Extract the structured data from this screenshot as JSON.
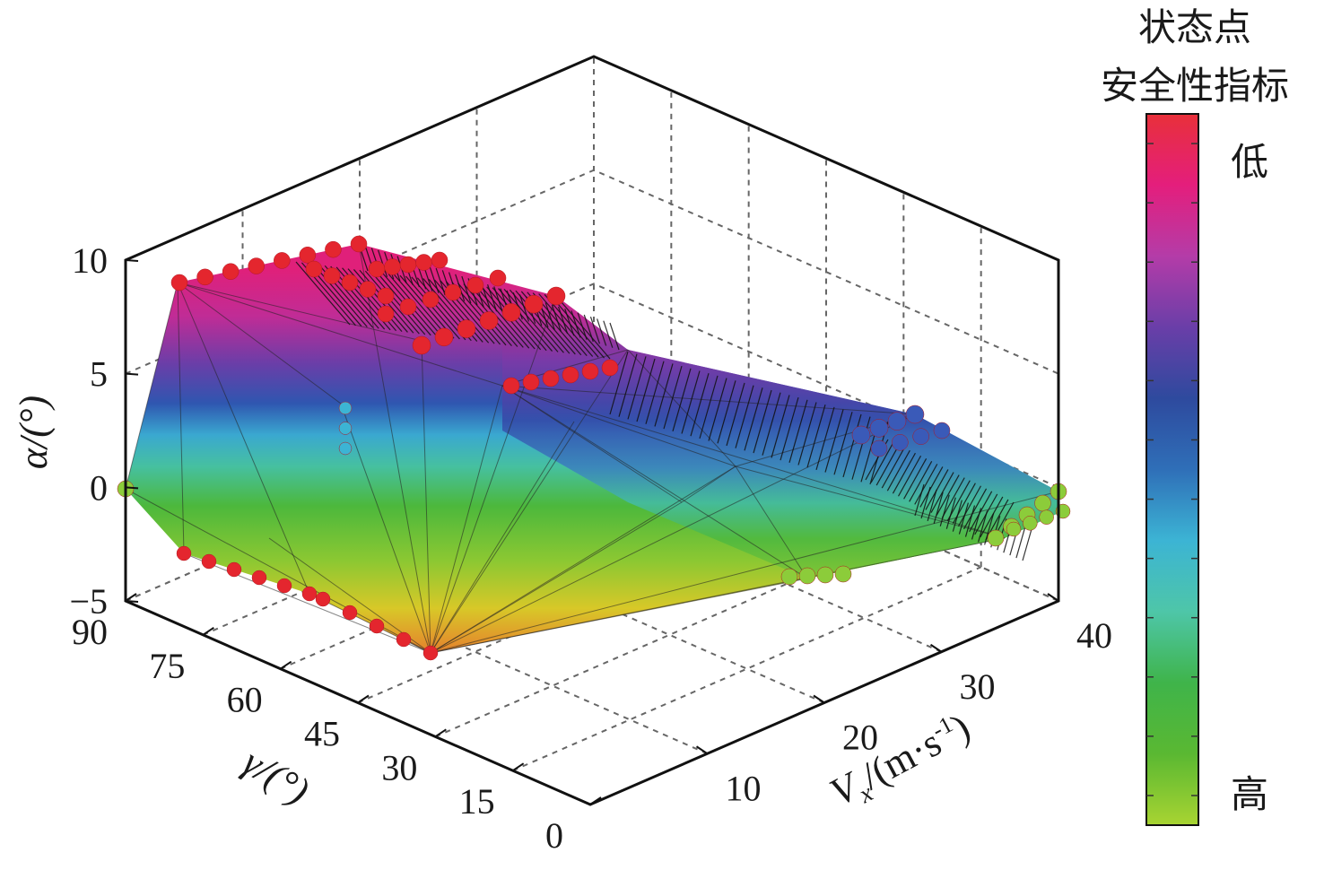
{
  "chart_data": {
    "type": "surface3d",
    "x_axis": {
      "label_main": "V",
      "label_sub": "x",
      "label_unit": "/(m·s",
      "label_exp": "-1",
      "label_close": ")",
      "ticks": [
        "10",
        "20",
        "30",
        "40"
      ],
      "range": [
        0,
        40
      ]
    },
    "y_axis": {
      "label": "γ/(°)",
      "ticks": [
        "0",
        "15",
        "30",
        "45",
        "60",
        "75",
        "90"
      ],
      "range": [
        0,
        90
      ]
    },
    "z_axis": {
      "label": "α/(°)",
      "ticks": [
        "−5",
        "0",
        "5",
        "10"
      ],
      "range": [
        -5,
        10
      ]
    },
    "colorbar": {
      "title_line1": "状态点",
      "title_line2": "安全性指标",
      "top_label": "低",
      "bottom_label": "高",
      "colors": [
        "#e8303a",
        "#e41e7c",
        "#b43ca8",
        "#6a3ea8",
        "#2e4a9e",
        "#2f6fb8",
        "#3cb4d4",
        "#4ec6a8",
        "#3fb44a",
        "#5ab832",
        "#a8d432"
      ]
    },
    "grid": true,
    "surface_colors": {
      "top": "#e0207a",
      "upper": "#8a3aa8",
      "mid": "#3a4aa8",
      "cyan": "#3cb4d4",
      "green": "#4cb83c",
      "yellow": "#c8d428",
      "orange": "#e89030",
      "red_marker": "#e4262e",
      "blue_marker": "#3a5ab8",
      "green_marker": "#8ccc3a"
    }
  }
}
